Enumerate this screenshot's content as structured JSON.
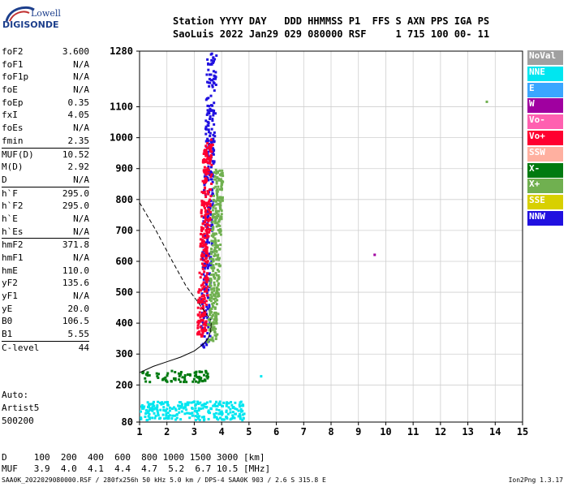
{
  "logo": {
    "top": "Lowell",
    "bottom": "DIGISONDE"
  },
  "header": {
    "line1": "Station YYYY DAY   DDD HHMMSS P1  FFS S AXN PPS IGA PS",
    "line2": "SaoLuis 2022 Jan29 029 080000 RSF     1 715 100 00- 11"
  },
  "params": [
    [
      [
        "foF2",
        "3.600"
      ],
      [
        "foF1",
        "N/A"
      ],
      [
        "foF1p",
        "N/A"
      ],
      [
        "foE",
        "N/A"
      ],
      [
        "foEp",
        "0.35"
      ],
      [
        "fxI",
        "4.05"
      ],
      [
        "foEs",
        "N/A"
      ],
      [
        "fmin",
        "2.35"
      ]
    ],
    [
      [
        "MUF(D)",
        "10.52"
      ],
      [
        "M(D)",
        "2.92"
      ],
      [
        "D",
        "N/A"
      ]
    ],
    [
      [
        "h`F",
        "295.0"
      ],
      [
        "h`F2",
        "295.0"
      ],
      [
        "h`E",
        "N/A"
      ],
      [
        "h`Es",
        "N/A"
      ]
    ],
    [
      [
        "hmF2",
        "371.8"
      ],
      [
        "hmF1",
        "N/A"
      ],
      [
        "hmE",
        "110.0"
      ],
      [
        "yF2",
        "135.6"
      ],
      [
        "yF1",
        "N/A"
      ],
      [
        "yE",
        "20.0"
      ],
      [
        "B0",
        "106.5"
      ],
      [
        "B1",
        "5.55"
      ]
    ],
    [
      [
        "C-level",
        "44"
      ]
    ]
  ],
  "auto": [
    "Auto:",
    "Artist5",
    "500200"
  ],
  "legend": [
    {
      "label": "NoVal",
      "color": "#a0a0a0"
    },
    {
      "label": "NNE",
      "color": "#00e6f0"
    },
    {
      "label": "E",
      "color": "#3aa6ff"
    },
    {
      "label": "W",
      "color": "#a000a0"
    },
    {
      "label": "Vo-",
      "color": "#ff60b0"
    },
    {
      "label": "Vo+",
      "color": "#ff0030"
    },
    {
      "label": "SSW",
      "color": "#ffb0a0"
    },
    {
      "label": "X-",
      "color": "#007a10"
    },
    {
      "label": "X+",
      "color": "#70b050"
    },
    {
      "label": "SSE",
      "color": "#d8d000"
    },
    {
      "label": "NNW",
      "color": "#2010e0"
    }
  ],
  "dscale": {
    "line1": "D     100  200  400  600  800 1000 1500 3000 [km]",
    "line2": "MUF   3.9  4.0  4.1  4.4  4.7  5.2  6.7 10.5 [MHz]"
  },
  "footer": {
    "left": "SAA0K_2022029080000.RSF / 280fx256h 50 kHz 5.0 km / DPS-4 SAA0K 903 / 2.6 S 315.8 E",
    "right": "Ion2Png 1.3.17"
  },
  "chart_data": {
    "type": "scatter",
    "xlim": [
      1,
      15
    ],
    "ylim": [
      80,
      1280
    ],
    "x_ticks": [
      1,
      2,
      3,
      4,
      5,
      6,
      7,
      8,
      9,
      10,
      11,
      12,
      13,
      14,
      15
    ],
    "y_ticks": [
      80,
      200,
      300,
      400,
      500,
      600,
      700,
      800,
      900,
      1000,
      1100,
      1280
    ],
    "grid": true,
    "profile": [
      [
        1.0,
        240
      ],
      [
        1.5,
        260
      ],
      [
        2.0,
        275
      ],
      [
        2.5,
        290
      ],
      [
        3.0,
        310
      ],
      [
        3.3,
        330
      ],
      [
        3.5,
        350
      ],
      [
        3.6,
        375
      ],
      [
        3.62,
        400
      ]
    ],
    "muf_curve": [
      [
        1.0,
        790
      ],
      [
        1.6,
        700
      ],
      [
        2.2,
        600
      ],
      [
        2.7,
        520
      ],
      [
        3.2,
        460
      ],
      [
        3.6,
        410
      ]
    ],
    "isolated_points": [
      [
        9.55,
        625
      ],
      [
        13.65,
        1120
      ],
      [
        5.4,
        232
      ]
    ],
    "clusters": [
      {
        "name": "F2 trace",
        "x": [
          2.5,
          4.4
        ],
        "y": [
          320,
          1280
        ],
        "color": "#2010e0"
      },
      {
        "name": "F2 trace",
        "x": [
          2.6,
          4.0
        ],
        "y": [
          360,
          1000
        ],
        "color": "#ff0030"
      },
      {
        "name": "F2 trace",
        "x": [
          3.3,
          4.0
        ],
        "y": [
          340,
          900
        ],
        "color": "#70b050"
      },
      {
        "name": "E region",
        "x": [
          1.0,
          4.8
        ],
        "y": [
          90,
          150
        ],
        "color": "#00e6f0"
      },
      {
        "name": "Es layer",
        "x": [
          1.0,
          3.5
        ],
        "y": [
          210,
          250
        ],
        "color": "#007a10"
      }
    ]
  }
}
